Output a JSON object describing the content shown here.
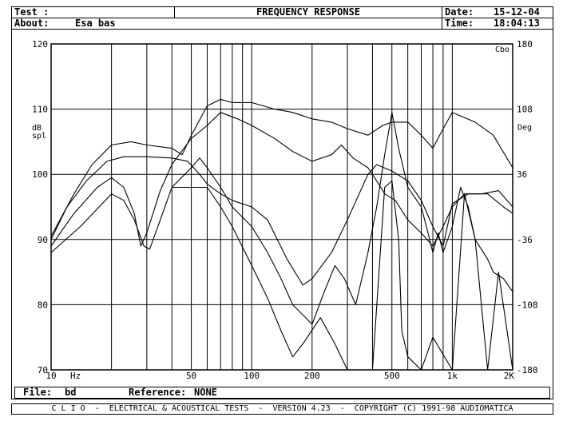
{
  "header": {
    "test_label": "Test :",
    "title": "FREQUENCY RESPONSE",
    "about_label": "About:",
    "about_value": "Esa bas",
    "date_label": "Date:",
    "date_value": "15-12-04",
    "time_label": "Time:",
    "time_value": "18:04:13"
  },
  "footer": {
    "file_label": "File:",
    "file_value": "bd",
    "reference_label": "Reference:",
    "reference_value": "NONE",
    "credit": "C L I O  -  ELECTRICAL & ACOUSTICAL TESTS  -  VERSION 4.23  -  COPYRIGHT (C) 1991-98 AUDIOMATICA"
  },
  "chart_data": {
    "type": "line",
    "title": "FREQUENCY RESPONSE",
    "ylabel": "dB spl",
    "y2label": "Deg",
    "y2unit_top": "Cbo",
    "x_scale": "log",
    "xlim": [
      10,
      2000
    ],
    "ylim": [
      70,
      120
    ],
    "y2lim": [
      -180,
      180
    ],
    "x_tick_labels": [
      {
        "value": 10,
        "label": "10"
      },
      {
        "value": 50,
        "label": "50"
      },
      {
        "value": 100,
        "label": "100"
      },
      {
        "value": 200,
        "label": "200"
      },
      {
        "value": 500,
        "label": "500"
      },
      {
        "value": 1000,
        "label": "1k"
      },
      {
        "value": 2000,
        "label": "2K"
      }
    ],
    "x_unit_label": "Hz",
    "x_gridlines": [
      20,
      30,
      40,
      50,
      60,
      70,
      80,
      90,
      100,
      200,
      300,
      400,
      500,
      600,
      700,
      800,
      900,
      1000
    ],
    "y_ticks": [
      70,
      80,
      90,
      100,
      110,
      120
    ],
    "y2_ticks": [
      -180,
      -108,
      -36,
      36,
      108,
      180
    ],
    "grid": true,
    "series": [
      {
        "values": [
          [
            10,
            90.5
          ],
          [
            13,
            97
          ],
          [
            16,
            101.5
          ],
          [
            20,
            104.5
          ],
          [
            25,
            105
          ],
          [
            30,
            104.5
          ],
          [
            40,
            104
          ],
          [
            45,
            103
          ],
          [
            50,
            106
          ],
          [
            60,
            110.5
          ],
          [
            70,
            111.5
          ],
          [
            80,
            111
          ],
          [
            100,
            111
          ],
          [
            130,
            110
          ],
          [
            160,
            109.5
          ],
          [
            200,
            108.5
          ],
          [
            250,
            108
          ],
          [
            300,
            107
          ],
          [
            380,
            106
          ],
          [
            450,
            107.5
          ],
          [
            500,
            108
          ],
          [
            600,
            108
          ],
          [
            700,
            106
          ],
          [
            800,
            104
          ],
          [
            900,
            107
          ],
          [
            1000,
            109.5
          ],
          [
            1300,
            108
          ],
          [
            1600,
            106
          ],
          [
            2000,
            101
          ]
        ]
      },
      {
        "values": [
          [
            10,
            90
          ],
          [
            12,
            95
          ],
          [
            15,
            99
          ],
          [
            19,
            102
          ],
          [
            23,
            102.7
          ],
          [
            30,
            102.7
          ],
          [
            40,
            102.5
          ],
          [
            48,
            102
          ],
          [
            55,
            100
          ],
          [
            60,
            98.5
          ],
          [
            70,
            97
          ],
          [
            80,
            96
          ],
          [
            100,
            95
          ],
          [
            120,
            93
          ],
          [
            150,
            87
          ],
          [
            180,
            83
          ],
          [
            200,
            84
          ],
          [
            250,
            88
          ],
          [
            300,
            93
          ],
          [
            380,
            100
          ],
          [
            420,
            101.5
          ],
          [
            500,
            100.5
          ],
          [
            600,
            99
          ],
          [
            700,
            96
          ],
          [
            800,
            92
          ],
          [
            900,
            89
          ],
          [
            1000,
            95.5
          ],
          [
            1200,
            97
          ],
          [
            1500,
            97
          ],
          [
            1800,
            95
          ],
          [
            2000,
            94
          ]
        ]
      },
      {
        "values": [
          [
            10,
            89
          ],
          [
            13,
            94
          ],
          [
            17,
            98
          ],
          [
            20,
            99.5
          ],
          [
            23,
            98
          ],
          [
            26,
            94
          ],
          [
            28,
            89
          ],
          [
            30,
            91
          ],
          [
            35,
            97.5
          ],
          [
            40,
            101.5
          ],
          [
            50,
            105.5
          ],
          [
            60,
            107.5
          ],
          [
            70,
            109.5
          ],
          [
            85,
            108.5
          ],
          [
            100,
            107.5
          ],
          [
            130,
            105.5
          ],
          [
            160,
            103.5
          ],
          [
            200,
            102
          ],
          [
            250,
            103
          ],
          [
            280,
            104.5
          ],
          [
            320,
            102.5
          ],
          [
            380,
            101
          ],
          [
            420,
            99
          ],
          [
            460,
            97
          ],
          [
            520,
            96
          ],
          [
            600,
            93
          ],
          [
            700,
            91
          ],
          [
            800,
            89
          ],
          [
            900,
            92
          ],
          [
            1000,
            95
          ],
          [
            1150,
            97
          ],
          [
            1400,
            97
          ],
          [
            1700,
            97.5
          ],
          [
            2000,
            95
          ]
        ]
      },
      {
        "values": [
          [
            10,
            88
          ],
          [
            14,
            92
          ],
          [
            18,
            95.5
          ],
          [
            20,
            97
          ],
          [
            23,
            96
          ],
          [
            26,
            93
          ],
          [
            29,
            89
          ],
          [
            31,
            88.5
          ],
          [
            35,
            93
          ],
          [
            40,
            98
          ],
          [
            50,
            101
          ],
          [
            55,
            102.5
          ],
          [
            60,
            101
          ],
          [
            70,
            98
          ],
          [
            80,
            95
          ],
          [
            100,
            92
          ],
          [
            120,
            88
          ],
          [
            140,
            84
          ],
          [
            160,
            80
          ],
          [
            200,
            77
          ],
          [
            230,
            82
          ],
          [
            260,
            86
          ],
          [
            290,
            84
          ],
          [
            330,
            80
          ],
          [
            380,
            88
          ],
          [
            420,
            95
          ],
          [
            460,
            103
          ],
          [
            500,
            109.5
          ],
          [
            540,
            104
          ],
          [
            600,
            98
          ],
          [
            700,
            95
          ],
          [
            750,
            91.5
          ],
          [
            800,
            88
          ],
          [
            850,
            91
          ],
          [
            900,
            88
          ],
          [
            1000,
            92
          ],
          [
            1100,
            98
          ],
          [
            1200,
            95
          ],
          [
            1300,
            90
          ],
          [
            1500,
            87
          ],
          [
            1600,
            85
          ],
          [
            1800,
            84
          ],
          [
            2000,
            82
          ]
        ]
      },
      {
        "values": [
          [
            40,
            98
          ],
          [
            60,
            98
          ],
          [
            70,
            95
          ],
          [
            80,
            92
          ],
          [
            100,
            86
          ],
          [
            120,
            81
          ],
          [
            140,
            76
          ],
          [
            160,
            72
          ],
          [
            180,
            74
          ],
          [
            220,
            78
          ],
          [
            260,
            74
          ],
          [
            300,
            70
          ],
          [
            400,
            70
          ],
          [
            460,
            98
          ],
          [
            500,
            99
          ],
          [
            540,
            90
          ],
          [
            560,
            76
          ],
          [
            600,
            72
          ],
          [
            700,
            70
          ],
          [
            800,
            75
          ],
          [
            1000,
            70
          ],
          [
            1150,
            97
          ],
          [
            1300,
            90
          ],
          [
            1500,
            70
          ],
          [
            1700,
            85
          ],
          [
            2000,
            70
          ]
        ]
      }
    ]
  }
}
